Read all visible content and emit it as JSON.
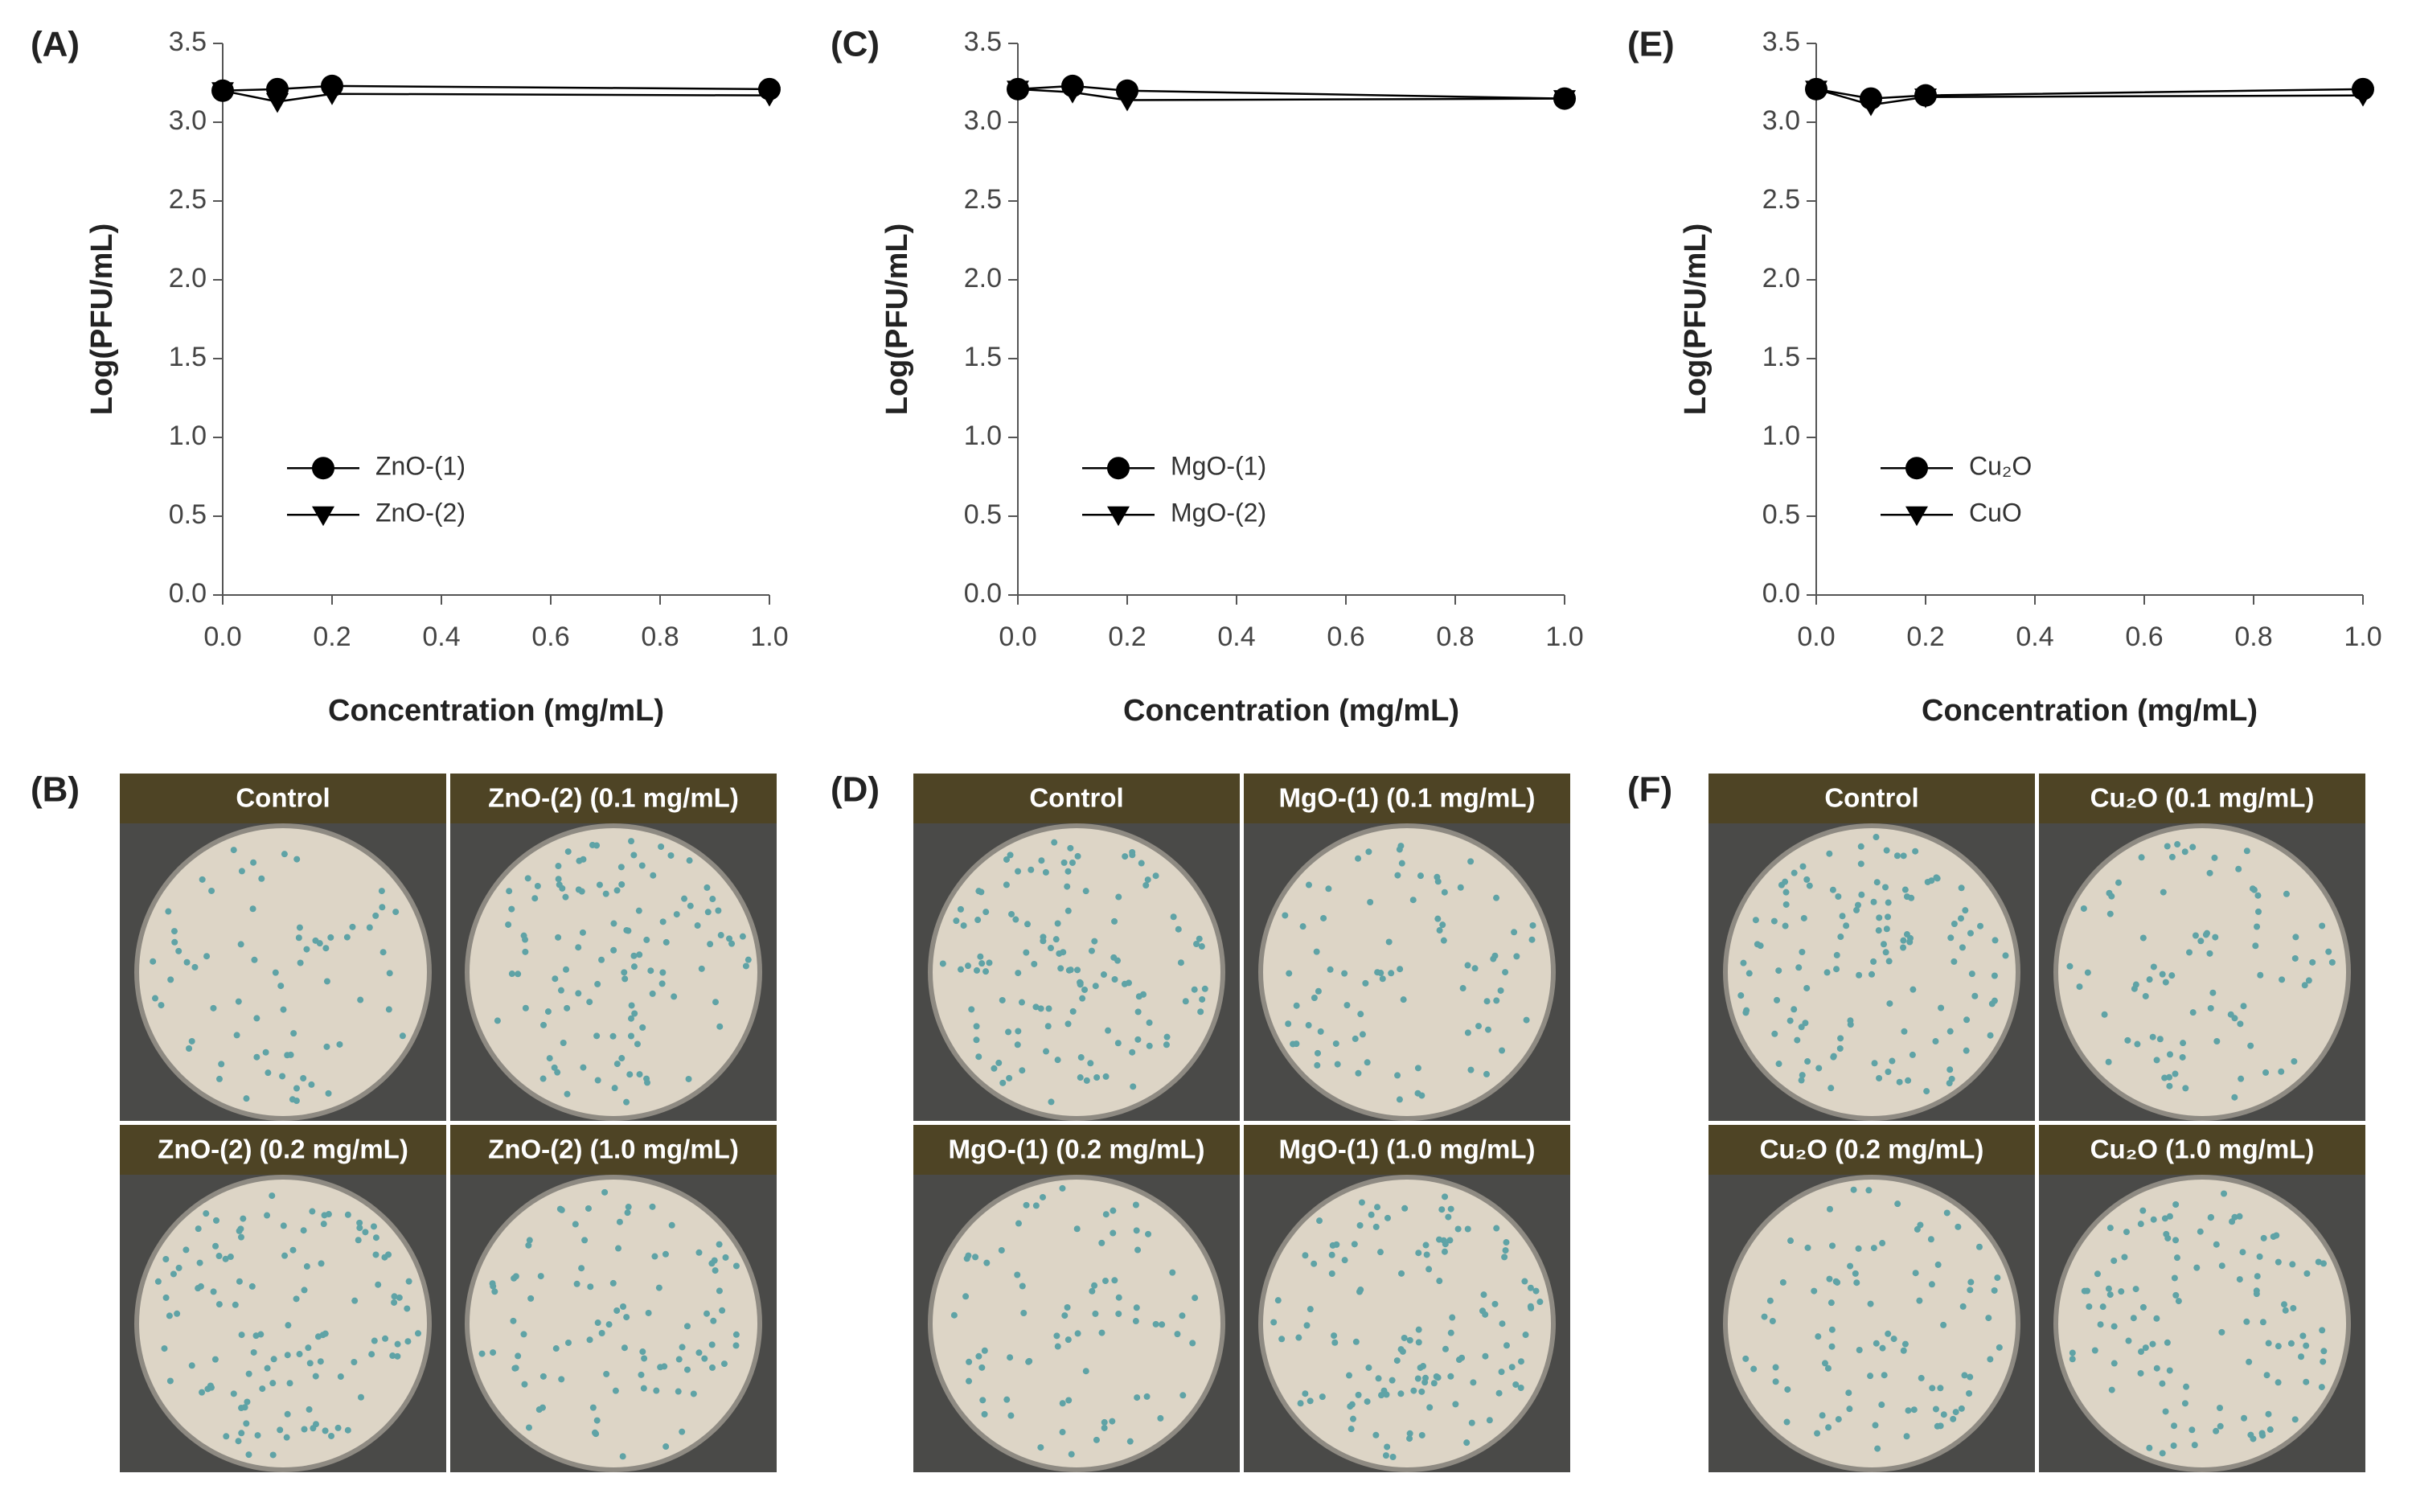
{
  "chart_data": [
    {
      "type": "line",
      "label": "(A)",
      "x_label": "Concentration (mg/mL)",
      "y_label": "Log(PFU/mL)",
      "x": [
        0,
        0.1,
        0.2,
        1.0
      ],
      "series": [
        {
          "name": "ZnO-(1)",
          "color": "#000000",
          "marker": "circle",
          "values": [
            3.2,
            3.21,
            3.23,
            3.21
          ]
        },
        {
          "name": "ZnO-(2)",
          "color": "#000000",
          "marker": "triangle-down",
          "values": [
            3.2,
            3.13,
            3.18,
            3.17
          ]
        }
      ],
      "xlim": [
        0,
        1.0
      ],
      "xticks": [
        {
          "value": 0,
          "label": "0.0"
        },
        0.2,
        0.4,
        0.6,
        0.8,
        {
          "value": 1,
          "label": "1.0"
        }
      ],
      "ylim": [
        0,
        3.5
      ],
      "yticks": [
        {
          "value": 0,
          "label": "0.0"
        },
        0.5,
        {
          "value": 1,
          "label": "1.0"
        },
        1.5,
        {
          "value": 2,
          "label": "2.0"
        },
        2.5,
        {
          "value": 3,
          "label": "3.0"
        },
        3.5
      ],
      "legend": "center left"
    },
    {
      "type": "line",
      "label": "(C)",
      "x_label": "Concentration (mg/mL)",
      "y_label": "Log(PFU/mL)",
      "x": [
        0,
        0.1,
        0.2,
        1.0
      ],
      "series": [
        {
          "name": "MgO-(1)",
          "color": "#000000",
          "marker": "circle",
          "values": [
            3.21,
            3.23,
            3.2,
            3.15
          ]
        },
        {
          "name": "MgO-(2)",
          "color": "#000000",
          "marker": "triangle-down",
          "values": [
            3.21,
            3.19,
            3.14,
            3.15
          ]
        }
      ],
      "xlim": [
        0,
        1.0
      ],
      "xticks": [
        {
          "value": 0,
          "label": "0.0"
        },
        0.2,
        0.4,
        0.6,
        0.8,
        {
          "value": 1,
          "label": "1.0"
        }
      ],
      "ylim": [
        0,
        3.5
      ],
      "yticks": [
        {
          "value": 0,
          "label": "0.0"
        },
        0.5,
        {
          "value": 1,
          "label": "1.0"
        },
        1.5,
        {
          "value": 2,
          "label": "2.0"
        },
        2.5,
        {
          "value": 3,
          "label": "3.0"
        },
        3.5
      ],
      "legend": "center left"
    },
    {
      "type": "line",
      "label": "(E)",
      "x_label": "Concentration (mg/mL)",
      "y_label": "Log(PFU/mL)",
      "x": [
        0,
        0.1,
        0.2,
        1.0
      ],
      "series": [
        {
          "name": "Cu₂O",
          "color": "#000000",
          "marker": "circle",
          "values": [
            3.21,
            3.15,
            3.17,
            3.21
          ]
        },
        {
          "name": "CuO",
          "color": "#000000",
          "marker": "triangle-down",
          "values": [
            3.21,
            3.11,
            3.16,
            3.17
          ]
        }
      ],
      "xlim": [
        0,
        1.0
      ],
      "xticks": [
        {
          "value": 0,
          "label": "0.0"
        },
        0.2,
        0.4,
        0.6,
        0.8,
        {
          "value": 1,
          "label": "1.0"
        }
      ],
      "ylim": [
        0,
        3.5
      ],
      "yticks": [
        {
          "value": 0,
          "label": "0.0"
        },
        0.5,
        {
          "value": 1,
          "label": "1.0"
        },
        1.5,
        {
          "value": 2,
          "label": "2.0"
        },
        2.5,
        {
          "value": 3,
          "label": "3.0"
        },
        3.5
      ],
      "legend": "center left"
    }
  ],
  "plates": [
    {
      "label": "(B)",
      "titles": [
        "Control",
        "ZnO-(2) (0.1 mg/mL)",
        "ZnO-(2) (0.2 mg/mL)",
        "ZnO-(2) (1.0 mg/mL)"
      ]
    },
    {
      "label": "(D)",
      "titles": [
        "Control",
        "MgO-(1) (0.1 mg/mL)",
        "MgO-(1) (0.2 mg/mL)",
        "MgO-(1) (1.0 mg/mL)"
      ]
    },
    {
      "label": "(F)",
      "titles": [
        "Control",
        "Cu₂O (0.1 mg/mL)",
        "Cu₂O (0.2 mg/mL)",
        "Cu₂O (1.0 mg/mL)"
      ]
    }
  ]
}
